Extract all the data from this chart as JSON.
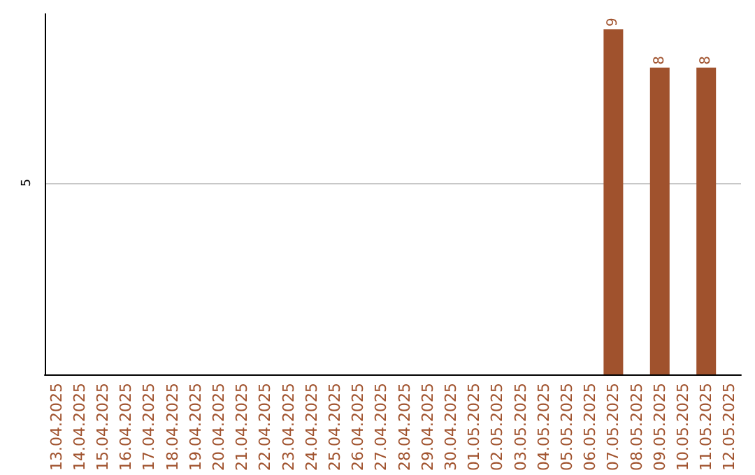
{
  "chart_data": {
    "type": "bar",
    "categories": [
      "13.04.2025",
      "14.04.2025",
      "15.04.2025",
      "16.04.2025",
      "17.04.2025",
      "18.04.2025",
      "19.04.2025",
      "20.04.2025",
      "21.04.2025",
      "22.04.2025",
      "23.04.2025",
      "24.04.2025",
      "25.04.2025",
      "26.04.2025",
      "27.04.2025",
      "28.04.2025",
      "29.04.2025",
      "30.04.2025",
      "01.05.2025",
      "02.05.2025",
      "03.05.2025",
      "04.05.2025",
      "05.05.2025",
      "06.05.2025",
      "07.05.2025",
      "08.05.2025",
      "09.05.2025",
      "10.05.2025",
      "11.05.2025",
      "12.05.2025"
    ],
    "values": [
      null,
      null,
      null,
      null,
      null,
      null,
      null,
      null,
      null,
      null,
      null,
      null,
      null,
      null,
      null,
      null,
      null,
      null,
      null,
      null,
      null,
      null,
      null,
      null,
      9,
      null,
      8,
      null,
      8,
      null
    ],
    "color": "#a0522d",
    "ylim": [
      0,
      9.4
    ],
    "yticks": [
      5
    ],
    "grid": "y",
    "data_labels": true
  }
}
